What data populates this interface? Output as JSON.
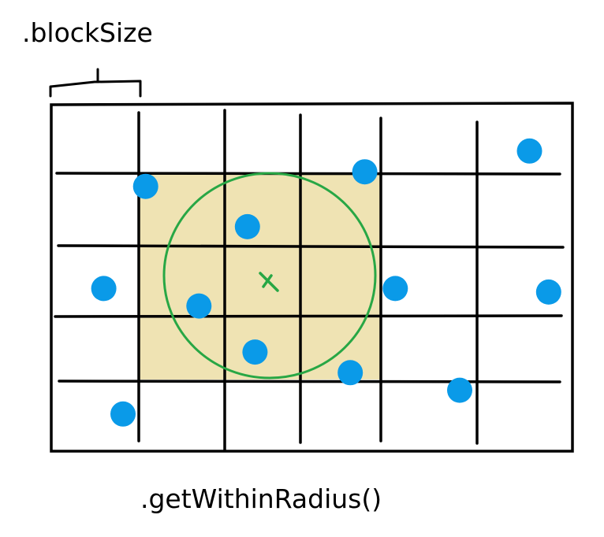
{
  "labels": {
    "block_size": ".blockSize",
    "method": ".getWithinRadius()",
    "center_mark": "x"
  },
  "colors": {
    "grid_line": "#000000",
    "highlight_fill": "#efe3b3",
    "circle_stroke": "#28a745",
    "point_fill": "#0a9ae8",
    "center_mark": "#28a745"
  },
  "grid": {
    "columns": 6,
    "rows": 5,
    "highlighted_cells": {
      "col_start": 1,
      "col_end": 3,
      "row_start": 1,
      "row_end": 3
    }
  },
  "points": [
    {
      "col": 1.08,
      "row": 1.18
    },
    {
      "col": 2.3,
      "row": 1.73
    },
    {
      "col": 3.8,
      "row": 0.98
    },
    {
      "col": 5.55,
      "row": 0.68
    },
    {
      "col": 0.6,
      "row": 2.6
    },
    {
      "col": 1.7,
      "row": 2.85
    },
    {
      "col": 4.15,
      "row": 2.6
    },
    {
      "col": 5.75,
      "row": 2.65
    },
    {
      "col": 2.4,
      "row": 3.55
    },
    {
      "col": 3.62,
      "row": 3.87
    },
    {
      "col": 4.82,
      "row": 4.13
    },
    {
      "col": 0.82,
      "row": 4.47
    }
  ]
}
